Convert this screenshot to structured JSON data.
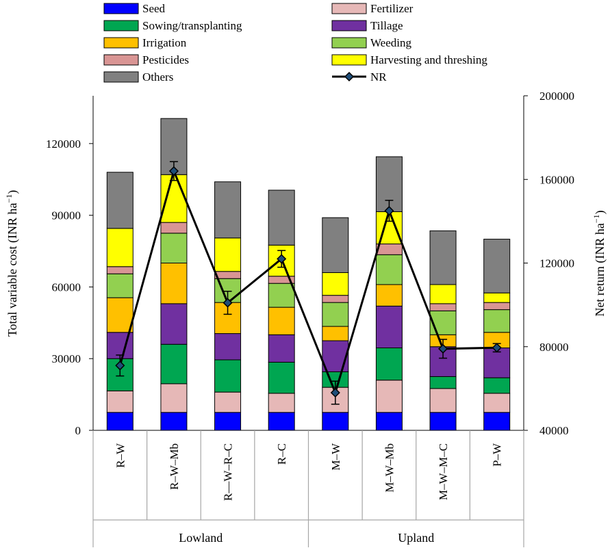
{
  "chart_data": {
    "type": "bar",
    "stacked": true,
    "secondary_series_type": "line",
    "categories": [
      "R–W",
      "R–W–Mb",
      "R––W–R–C",
      "R–C",
      "M–W",
      "M–W–Mb",
      "M–W–M–C",
      "P–W"
    ],
    "groups": [
      {
        "label": "Lowland",
        "categories": [
          "R–W",
          "R–W–Mb",
          "R––W–R–C",
          "R–C"
        ]
      },
      {
        "label": "Upland",
        "categories": [
          "M–W",
          "M–W–Mb",
          "M–W–M–C",
          "P–W"
        ]
      }
    ],
    "ylabel": "Total variable cost (INR ha⁻¹)",
    "y2label": "Net return (INR ha⁻¹)",
    "ylim": [
      0,
      140000
    ],
    "y2lim": [
      40000,
      200000
    ],
    "yticks": [
      "0",
      "30000",
      "60000",
      "90000",
      "120000"
    ],
    "y2ticks": [
      "40000",
      "80000",
      "120000",
      "160000",
      "200000"
    ],
    "series": [
      {
        "name": "Seed",
        "color": "#0000ff",
        "values": [
          7500,
          7500,
          7500,
          7500,
          7500,
          7500,
          7500,
          7500
        ]
      },
      {
        "name": "Fertilizer",
        "color": "#e6b8b7",
        "values": [
          9000,
          12000,
          8500,
          8000,
          10500,
          13500,
          10000,
          8000
        ]
      },
      {
        "name": "Sowing/transplanting",
        "color": "#00a651",
        "values": [
          13500,
          16500,
          13500,
          13000,
          6500,
          13500,
          5000,
          6500
        ]
      },
      {
        "name": "Tillage",
        "color": "#7030a0",
        "values": [
          11000,
          17000,
          11000,
          11500,
          13000,
          17500,
          12500,
          12500
        ]
      },
      {
        "name": "Irrigation",
        "color": "#ffc000",
        "values": [
          14500,
          17000,
          13000,
          11500,
          6000,
          9000,
          5000,
          6500
        ]
      },
      {
        "name": "Weeding",
        "color": "#92d050",
        "values": [
          10000,
          12500,
          10000,
          10000,
          10000,
          12500,
          10000,
          9500
        ]
      },
      {
        "name": "Pesticides",
        "color": "#d99594",
        "values": [
          3000,
          4500,
          3000,
          3000,
          3000,
          4500,
          3000,
          3000
        ]
      },
      {
        "name": "Harvesting and threshing",
        "color": "#ffff00",
        "values": [
          16000,
          20000,
          14000,
          13000,
          9500,
          13500,
          8000,
          4000
        ]
      },
      {
        "name": "Others",
        "color": "#808080",
        "values": [
          23500,
          23500,
          23500,
          23000,
          23000,
          23000,
          22500,
          22500
        ]
      }
    ],
    "line_series": {
      "name": "NR",
      "color": "#000000",
      "marker_color": "#1f4e79",
      "values": [
        71000,
        164000,
        101000,
        122000,
        58000,
        145000,
        79000,
        79500
      ],
      "errors": [
        5000,
        4500,
        5500,
        4000,
        5500,
        5000,
        4500,
        2000
      ]
    },
    "legend_order": [
      "Seed",
      "Fertilizer",
      "Sowing/transplanting",
      "Tillage",
      "Irrigation",
      "Weeding",
      "Pesticides",
      "Harvesting and threshing",
      "Others",
      "NR"
    ],
    "legend_position": "top",
    "grid": false
  }
}
